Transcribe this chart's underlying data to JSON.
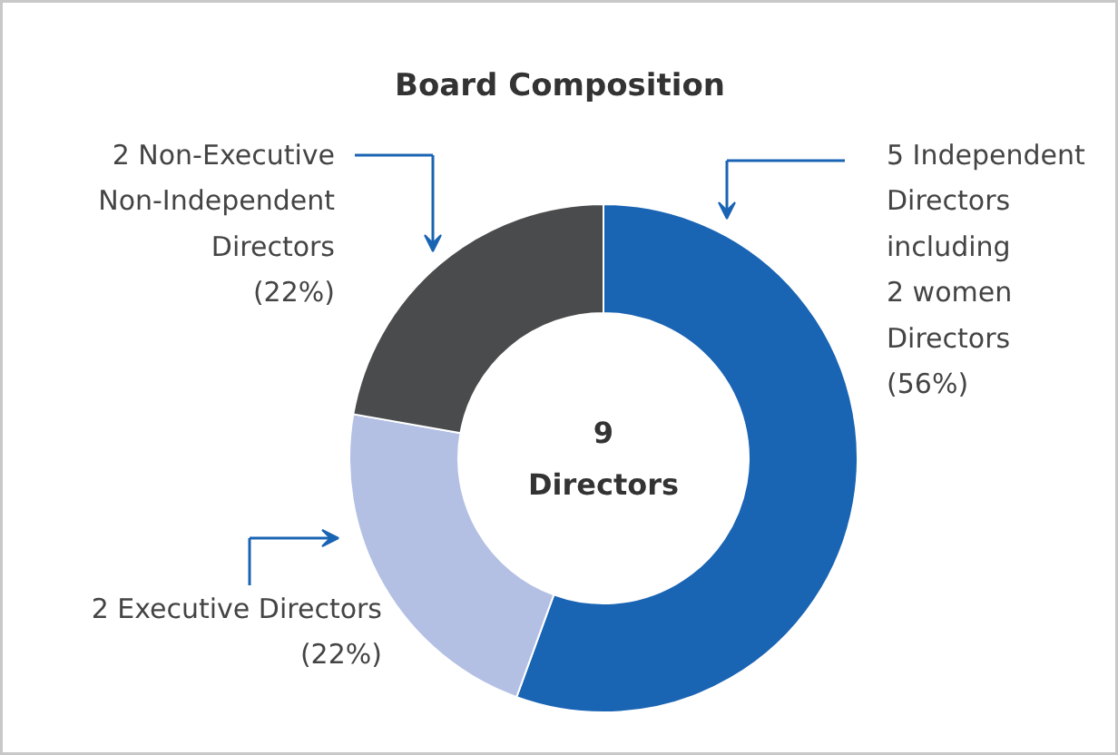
{
  "chart_data": {
    "type": "donut",
    "title": "Board Composition",
    "categories": [
      "5 Independent\nDirectors\nincluding\n2 women\nDirectors\n(56%)",
      "2 Executive Directors\n(22%)",
      "2 Non-Executive\nNon-Independent\nDirectors\n(22%)"
    ],
    "values": [
      5,
      2,
      2
    ],
    "colors": [
      "#1a64b4",
      "#b3c0e4",
      "#4a4b4d"
    ],
    "annotations": [
      "9\nDirectors"
    ]
  }
}
